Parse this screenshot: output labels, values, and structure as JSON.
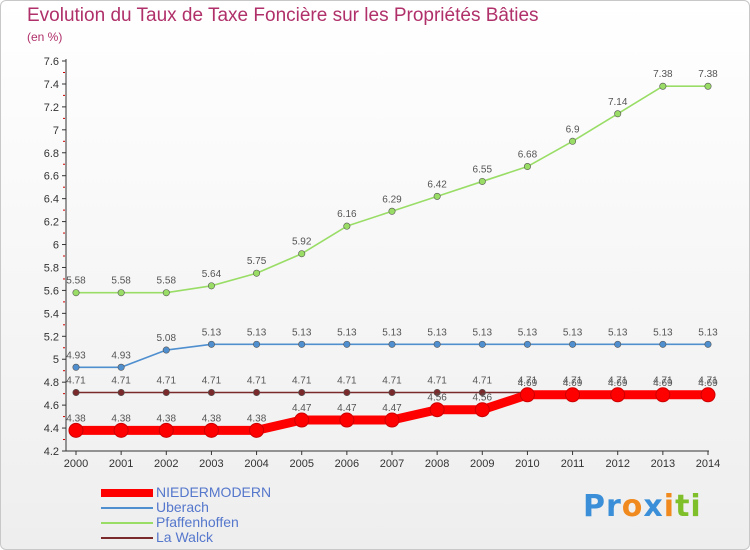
{
  "title": "Evolution du Taux de Taxe Foncière sur les Propriétés Bâties",
  "unit": "(en %)",
  "logo": {
    "text": "Proxiti",
    "colors": [
      "#3a8fd8",
      "#f08a1e",
      "#7fbf2a"
    ]
  },
  "chart_data": {
    "type": "line",
    "x": [
      2000,
      2001,
      2002,
      2003,
      2004,
      2005,
      2006,
      2007,
      2008,
      2009,
      2010,
      2011,
      2012,
      2013,
      2014
    ],
    "ylim": [
      4.2,
      7.6
    ],
    "yticks": [
      "4.2",
      "4.4",
      "4.6",
      "4.8",
      "5",
      "5.2",
      "5.4",
      "5.6",
      "5.8",
      "6",
      "6.2",
      "6.4",
      "6.6",
      "6.8",
      "7",
      "7.2",
      "7.4",
      "7.6"
    ],
    "grid": false,
    "legend_position": "bottom-left",
    "series": [
      {
        "name": "NIEDERMODERN",
        "color": "#ff0000",
        "highlight": true,
        "values": [
          4.38,
          4.38,
          4.38,
          4.38,
          4.38,
          4.47,
          4.47,
          4.47,
          4.56,
          4.56,
          4.69,
          4.69,
          4.69,
          4.69,
          4.69
        ],
        "labels": [
          "4.38",
          "4.38",
          "4.38",
          "4.38",
          "4.38",
          "4.47",
          "4.47",
          "4.47",
          "4.56",
          "4.56",
          "4.69",
          "4.69",
          "4.69",
          "4.69",
          "4.69"
        ]
      },
      {
        "name": "Uberach",
        "color": "#4f8fcf",
        "highlight": false,
        "values": [
          4.93,
          4.93,
          5.08,
          5.13,
          5.13,
          5.13,
          5.13,
          5.13,
          5.13,
          5.13,
          5.13,
          5.13,
          5.13,
          5.13,
          5.13
        ],
        "labels": [
          "4.93",
          "4.93",
          "5.08",
          "5.13",
          "5.13",
          "5.13",
          "5.13",
          "5.13",
          "5.13",
          "5.13",
          "5.13",
          "5.13",
          "5.13",
          "5.13",
          "5.13"
        ]
      },
      {
        "name": "Pfaffenhoffen",
        "color": "#99dd66",
        "highlight": false,
        "values": [
          5.58,
          5.58,
          5.58,
          5.64,
          5.75,
          5.92,
          6.16,
          6.29,
          6.42,
          6.55,
          6.68,
          6.9,
          7.14,
          7.38,
          7.38
        ],
        "labels": [
          "5.58",
          "5.58",
          "5.58",
          "5.64",
          "5.75",
          "5.92",
          "6.16",
          "6.29",
          "6.42",
          "6.55",
          "6.68",
          "6.9",
          "7.14",
          "7.38",
          "7.38"
        ]
      },
      {
        "name": "La Walck",
        "color": "#7a2a2a",
        "highlight": false,
        "values": [
          4.71,
          4.71,
          4.71,
          4.71,
          4.71,
          4.71,
          4.71,
          4.71,
          4.71,
          4.71,
          4.71,
          4.71,
          4.71,
          4.71,
          4.71
        ],
        "labels": [
          "4.71",
          "4.71",
          "4.71",
          "4.71",
          "4.71",
          "4.71",
          "4.71",
          "4.71",
          "4.71",
          "4.71",
          "4.71",
          "4.71",
          "4.71",
          "4.71",
          "4.71"
        ]
      }
    ]
  }
}
